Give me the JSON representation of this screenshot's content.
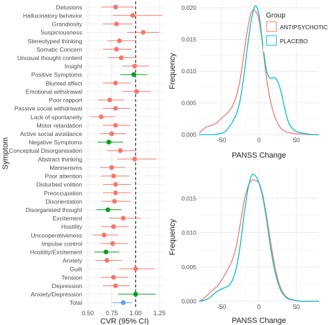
{
  "chart_data": [
    {
      "type": "scatter",
      "subtype": "forest-plot",
      "xlabel": "CVR (95% CI)",
      "ylabel": "Symptom",
      "xlim": [
        0.47,
        1.3
      ],
      "xticks": [
        "0.50",
        "0.75",
        "1.00",
        "1.25"
      ],
      "xtick_values": [
        0.5,
        0.75,
        1.0,
        1.25
      ],
      "reference_line": 1.0,
      "grid": true,
      "colors": {
        "item": "#F8766D",
        "composite": "#00A01E",
        "total": "#619CFF",
        "reference": "#000000"
      },
      "rows": [
        {
          "label": "Delusions",
          "est": 0.79,
          "lo": 0.64,
          "hi": 0.98,
          "kind": "item"
        },
        {
          "label": "Hallucinatory behavior",
          "est": 0.97,
          "lo": 0.76,
          "hi": 1.28,
          "kind": "item"
        },
        {
          "label": "Grandiosity",
          "est": 0.8,
          "lo": 0.66,
          "hi": 0.97,
          "kind": "item"
        },
        {
          "label": "Suspiciousness",
          "est": 1.08,
          "lo": 0.91,
          "hi": 1.25,
          "kind": "item"
        },
        {
          "label": "Stereotyped thinking",
          "est": 0.83,
          "lo": 0.7,
          "hi": 0.99,
          "kind": "item"
        },
        {
          "label": "Somatic Concern",
          "est": 0.8,
          "lo": 0.66,
          "hi": 0.96,
          "kind": "item"
        },
        {
          "label": "Unusual thought content",
          "est": 0.85,
          "lo": 0.71,
          "hi": 1.01,
          "kind": "item"
        },
        {
          "label": "Insight",
          "est": 0.99,
          "lo": 0.86,
          "hi": 1.14,
          "kind": "item"
        },
        {
          "label": "Positive Symptoms",
          "est": 0.98,
          "lo": 0.84,
          "hi": 1.12,
          "kind": "composite"
        },
        {
          "label": "Blunted affect",
          "est": 0.79,
          "lo": 0.66,
          "hi": 0.95,
          "kind": "item"
        },
        {
          "label": "Emotional withdrawal",
          "est": 1.01,
          "lo": 0.86,
          "hi": 1.16,
          "kind": "item"
        },
        {
          "label": "Poor rapport",
          "est": 0.73,
          "lo": 0.61,
          "hi": 0.88,
          "kind": "item"
        },
        {
          "label": "Passive social withdrawal",
          "est": 0.79,
          "lo": 0.66,
          "hi": 0.95,
          "kind": "item"
        },
        {
          "label": "Lack of spontaneity",
          "est": 0.64,
          "lo": 0.53,
          "hi": 0.78,
          "kind": "item"
        },
        {
          "label": "Motor retardation",
          "est": 0.79,
          "lo": 0.66,
          "hi": 0.94,
          "kind": "item"
        },
        {
          "label": "Active social avoidance",
          "est": 0.75,
          "lo": 0.63,
          "hi": 0.9,
          "kind": "item"
        },
        {
          "label": "Negative Symptoms",
          "est": 0.72,
          "lo": 0.6,
          "hi": 0.87,
          "kind": "composite"
        },
        {
          "label": "Conceptual Disorganisation",
          "est": 0.84,
          "lo": 0.7,
          "hi": 1.0,
          "kind": "item"
        },
        {
          "label": "Abstract thinking",
          "est": 0.99,
          "lo": 0.81,
          "hi": 1.22,
          "kind": "item"
        },
        {
          "label": "Mannerisms",
          "est": 0.75,
          "lo": 0.63,
          "hi": 0.89,
          "kind": "item"
        },
        {
          "label": "Poor attention",
          "est": 0.77,
          "lo": 0.64,
          "hi": 0.93,
          "kind": "item"
        },
        {
          "label": "Disturbed volition",
          "est": 0.79,
          "lo": 0.66,
          "hi": 0.95,
          "kind": "item"
        },
        {
          "label": "Preoccupation",
          "est": 0.79,
          "lo": 0.66,
          "hi": 0.95,
          "kind": "item"
        },
        {
          "label": "Disorientation",
          "est": 0.78,
          "lo": 0.65,
          "hi": 0.94,
          "kind": "item"
        },
        {
          "label": "Disorganised thought",
          "est": 0.71,
          "lo": 0.59,
          "hi": 0.85,
          "kind": "composite"
        },
        {
          "label": "Excitement",
          "est": 0.87,
          "lo": 0.72,
          "hi": 1.05,
          "kind": "item"
        },
        {
          "label": "Hostility",
          "est": 0.77,
          "lo": 0.64,
          "hi": 0.93,
          "kind": "item"
        },
        {
          "label": "Uncooperativeness",
          "est": 0.67,
          "lo": 0.55,
          "hi": 0.82,
          "kind": "item"
        },
        {
          "label": "Impulse control",
          "est": 0.76,
          "lo": 0.63,
          "hi": 0.92,
          "kind": "item"
        },
        {
          "label": "Hostility/Excitement",
          "est": 0.69,
          "lo": 0.57,
          "hi": 0.83,
          "kind": "composite"
        },
        {
          "label": "Anxiety",
          "est": 0.7,
          "lo": 0.58,
          "hi": 0.85,
          "kind": "item"
        },
        {
          "label": "Guilt",
          "est": 1.0,
          "lo": 0.83,
          "hi": 1.2,
          "kind": "item"
        },
        {
          "label": "Tension",
          "est": 0.77,
          "lo": 0.64,
          "hi": 0.92,
          "kind": "item"
        },
        {
          "label": "Depression",
          "est": 0.79,
          "lo": 0.66,
          "hi": 0.94,
          "kind": "item"
        },
        {
          "label": "Anxiety/Depression",
          "est": 1.0,
          "lo": 0.82,
          "hi": 1.21,
          "kind": "composite"
        },
        {
          "label": "Total",
          "est": 0.87,
          "lo": 0.76,
          "hi": 0.96,
          "kind": "total"
        }
      ]
    },
    {
      "type": "area",
      "subtype": "density",
      "xlabel": "PANSS Change",
      "ylabel": "Frequency",
      "xlim": [
        -80,
        80
      ],
      "ylim": [
        0,
        0.021
      ],
      "xticks": [
        "-50",
        "0",
        "50"
      ],
      "xtick_values": [
        -50,
        0,
        50
      ],
      "yticks": [
        "0.000",
        "0.005",
        "0.010",
        "0.015",
        "0.020"
      ],
      "ytick_values": [
        0,
        0.005,
        0.01,
        0.015,
        0.02
      ],
      "grid": true,
      "legend": {
        "title": "Group",
        "position": "right",
        "entries": [
          "ANTIPSYCHOTIC",
          "PLACEBO"
        ]
      },
      "series": [
        {
          "name": "ANTIPSYCHOTIC",
          "color": "#F8766D",
          "x": [
            -80,
            -75,
            -70,
            -65,
            -60,
            -55,
            -50,
            -45,
            -40,
            -35,
            -30,
            -25,
            -20,
            -15,
            -10,
            -5,
            0,
            5,
            10,
            15,
            20,
            25,
            30,
            35,
            40,
            45,
            50,
            55,
            60,
            65,
            70,
            75,
            80
          ],
          "y": [
            0.0002,
            0.0008,
            0.0012,
            0.0014,
            0.0016,
            0.002,
            0.0026,
            0.0031,
            0.0037,
            0.0046,
            0.0062,
            0.0088,
            0.0128,
            0.0168,
            0.0193,
            0.0195,
            0.0181,
            0.0139,
            0.009,
            0.0055,
            0.0032,
            0.0018,
            0.0009,
            0.0005,
            0.0003,
            0.0002,
            0.0001,
            0.0001,
            0.0001,
            0.0,
            0.0,
            0.0,
            0.0
          ]
        },
        {
          "name": "PLACEBO",
          "color": "#00BFC4",
          "x": [
            -80,
            -75,
            -70,
            -65,
            -60,
            -55,
            -50,
            -45,
            -40,
            -35,
            -30,
            -25,
            -20,
            -15,
            -10,
            -5,
            0,
            5,
            10,
            15,
            20,
            25,
            30,
            35,
            40,
            45,
            50,
            55,
            60,
            65,
            70,
            75,
            80
          ],
          "y": [
            0.0,
            0.0,
            0.0,
            0.0,
            0.0,
            0.0001,
            0.0002,
            0.0005,
            0.0012,
            0.0021,
            0.0033,
            0.0055,
            0.0094,
            0.0142,
            0.0182,
            0.0203,
            0.0189,
            0.0143,
            0.0101,
            0.0089,
            0.009,
            0.0084,
            0.0065,
            0.0038,
            0.0018,
            0.0009,
            0.0005,
            0.0003,
            0.0002,
            0.0001,
            0.0,
            0.0,
            0.0
          ]
        }
      ]
    },
    {
      "type": "area",
      "subtype": "density",
      "xlabel": "PANSS Change",
      "ylabel": "Frequency",
      "xlim": [
        -80,
        80
      ],
      "ylim": [
        0,
        0.0195
      ],
      "xticks": [
        "-50",
        "0",
        "50"
      ],
      "xtick_values": [
        -50,
        0,
        50
      ],
      "yticks": [
        "0.000",
        "0.005",
        "0.010",
        "0.015"
      ],
      "ytick_values": [
        0,
        0.005,
        0.01,
        0.015
      ],
      "grid": true,
      "series": [
        {
          "name": "ANTIPSYCHOTIC",
          "color": "#F8766D",
          "x": [
            -80,
            -75,
            -70,
            -65,
            -60,
            -55,
            -50,
            -45,
            -40,
            -35,
            -30,
            -25,
            -20,
            -15,
            -10,
            -5,
            0,
            5,
            10,
            15,
            20,
            25,
            30,
            35,
            40,
            45,
            50,
            55,
            60,
            65,
            70,
            75,
            80
          ],
          "y": [
            0.0,
            0.0003,
            0.0008,
            0.0013,
            0.0018,
            0.0023,
            0.0031,
            0.004,
            0.005,
            0.0062,
            0.0082,
            0.0113,
            0.0145,
            0.0166,
            0.0176,
            0.0176,
            0.0172,
            0.0155,
            0.0125,
            0.009,
            0.0058,
            0.0033,
            0.0017,
            0.0008,
            0.0004,
            0.0002,
            0.0001,
            0.0,
            0.0,
            0.0,
            0.0,
            0.0,
            0.0
          ]
        },
        {
          "name": "PLACEBO",
          "color": "#00BFC4",
          "x": [
            -80,
            -75,
            -70,
            -65,
            -60,
            -55,
            -50,
            -45,
            -40,
            -35,
            -30,
            -25,
            -20,
            -15,
            -10,
            -5,
            0,
            5,
            10,
            15,
            20,
            25,
            30,
            35,
            40,
            45,
            50,
            55,
            60,
            65,
            70,
            75,
            80
          ],
          "y": [
            0.0,
            0.0001,
            0.0003,
            0.0006,
            0.0011,
            0.0015,
            0.0018,
            0.002,
            0.0023,
            0.0032,
            0.005,
            0.0082,
            0.0125,
            0.0162,
            0.0183,
            0.0183,
            0.0172,
            0.0152,
            0.012,
            0.0082,
            0.005,
            0.0028,
            0.0014,
            0.0007,
            0.0003,
            0.0002,
            0.0001,
            0.0,
            0.0,
            0.0,
            0.0,
            0.0,
            0.0
          ]
        }
      ]
    }
  ]
}
